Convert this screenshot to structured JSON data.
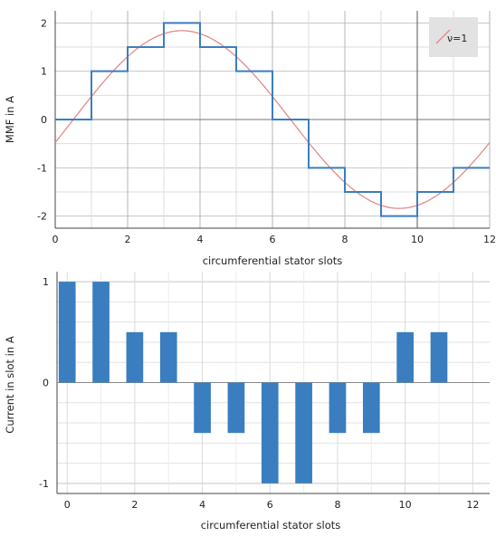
{
  "chart_data": [
    {
      "type": "line",
      "xlabel": "circumferential stator slots",
      "ylabel": "MMF in A",
      "xlim": [
        0,
        12
      ],
      "ylim": [
        -2.25,
        2.25
      ],
      "x_ticks": [
        0,
        2,
        4,
        6,
        8,
        10,
        12
      ],
      "x_tick_labels": [
        "0",
        "2",
        "4",
        "6",
        "8",
        "10",
        "12"
      ],
      "y_ticks": [
        2,
        1,
        0,
        -1,
        -2
      ],
      "y_tick_labels": [
        "2",
        "1",
        "0",
        "-1",
        "-2"
      ],
      "minor_x_gridlines": [
        1,
        3,
        5,
        7,
        9,
        11
      ],
      "major_x_gridlines": [
        0,
        2,
        4,
        6,
        8,
        10,
        12
      ],
      "y_gridlines": [
        2,
        1.5,
        1,
        0.5,
        0,
        -0.5,
        -1,
        -1.5,
        -2
      ],
      "grid": true,
      "legend": {
        "position": "top-right",
        "entries": [
          "ν=1"
        ]
      },
      "series": [
        {
          "kind": "step",
          "color": "#3a7ebf",
          "x": [
            0,
            1,
            2,
            3,
            4,
            5,
            6,
            7,
            8,
            9,
            10,
            11,
            12
          ],
          "y": [
            0,
            1,
            1.5,
            2,
            1.5,
            1,
            0,
            -1,
            -1.5,
            -2,
            -1.5,
            -1,
            -1
          ]
        },
        {
          "name": "ν=1",
          "kind": "sine",
          "color": "#e48a8a",
          "amplitude": 1.84,
          "period": 12,
          "peak_at": 3.5
        }
      ]
    },
    {
      "type": "bar",
      "xlabel": "circumferential stator slots",
      "ylabel": "Current in slot in A",
      "xlim": [
        -0.3,
        12.5
      ],
      "ylim": [
        -1.1,
        1.1
      ],
      "x_ticks": [
        0,
        2,
        4,
        6,
        8,
        10,
        12
      ],
      "x_tick_labels": [
        "0",
        "2",
        "4",
        "6",
        "8",
        "10",
        "12"
      ],
      "y_ticks": [
        1,
        0,
        -1
      ],
      "y_tick_labels": [
        "1",
        "0",
        "-1"
      ],
      "minor_y_gridlines": [
        0.8,
        0.6,
        0.4,
        0.2,
        -0.2,
        -0.4,
        -0.6,
        -0.8
      ],
      "grid": true,
      "bar_color": "#3a7ebf",
      "categories": [
        0,
        1,
        2,
        3,
        4,
        5,
        6,
        7,
        8,
        9,
        10,
        11
      ],
      "values": [
        1,
        1,
        0.5,
        0.5,
        -0.5,
        -0.5,
        -1,
        -1,
        -0.5,
        -0.5,
        0.5,
        0.5
      ]
    }
  ]
}
